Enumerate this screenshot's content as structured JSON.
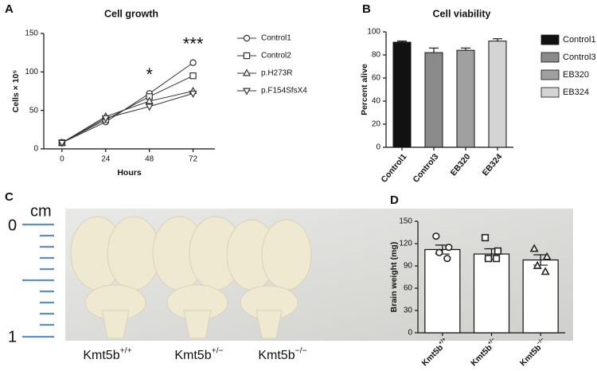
{
  "panels": [
    "A",
    "B",
    "C",
    "D"
  ],
  "chart_data": [
    {
      "type": "line",
      "title": "Cell growth",
      "x_label": "Hours",
      "y_label": "Cells × 10⁵",
      "x": [
        0,
        24,
        48,
        72
      ],
      "xlim": [
        -10,
        84
      ],
      "xticks": [
        0,
        24,
        48,
        72
      ],
      "ylim": [
        0,
        150
      ],
      "yticks": [
        0,
        50,
        100,
        150
      ],
      "annotations": [
        "*",
        "***"
      ],
      "series": [
        {
          "name": "Control1",
          "color": "#333333",
          "marker": "circle",
          "values": [
            8,
            35,
            72,
            112
          ]
        },
        {
          "name": "Control2",
          "color": "#333333",
          "marker": "square",
          "values": [
            8,
            38,
            68,
            95
          ]
        },
        {
          "name": "p.H273R",
          "color": "#333333",
          "marker": "triangle-up",
          "values": [
            8,
            42,
            62,
            75
          ]
        },
        {
          "name": "p.F154SfsX4",
          "color": "#333333",
          "marker": "triangle-down",
          "values": [
            8,
            40,
            55,
            72
          ]
        }
      ]
    },
    {
      "type": "bar",
      "title": "Cell viability",
      "y_label": "Percent alive",
      "categories": [
        "Control1",
        "Control3",
        "EB320",
        "EB324"
      ],
      "values": [
        91,
        82,
        84,
        92
      ],
      "errors": [
        1,
        4,
        2,
        2
      ],
      "colors": [
        "#111111",
        "#8a8a8a",
        "#a0a0a0",
        "#d4d4d4"
      ],
      "ylim": [
        0,
        100
      ],
      "yticks": [
        0,
        20,
        40,
        60,
        80,
        100
      ]
    },
    {
      "type": "bar-scatter",
      "y_label": "Brain weight (mg)",
      "categories": [
        {
          "base": "Kmt5b",
          "sup": "+/+"
        },
        {
          "base": "Kmt5b",
          "sup": "+/−"
        },
        {
          "base": "Kmt5b",
          "sup": "−/−"
        }
      ],
      "values": [
        112,
        106,
        98
      ],
      "errors": [
        6,
        7,
        7
      ],
      "markers": [
        "circle",
        "square",
        "triangle-up"
      ],
      "points": [
        [
          130,
          115,
          108,
          100
        ],
        [
          128,
          110,
          100,
          100
        ],
        [
          113,
          102,
          90,
          82
        ]
      ],
      "ylim": [
        0,
        150
      ],
      "yticks": [
        0,
        30,
        60,
        90,
        120,
        150
      ]
    }
  ],
  "photo": {
    "scale_unit": "cm",
    "scale_start": "0",
    "scale_end": "1",
    "labels": [
      {
        "base": "Kmt5b",
        "sup": "+/+"
      },
      {
        "base": "Kmt5b",
        "sup": "+/−"
      },
      {
        "base": "Kmt5b",
        "sup": "−/−"
      }
    ]
  }
}
